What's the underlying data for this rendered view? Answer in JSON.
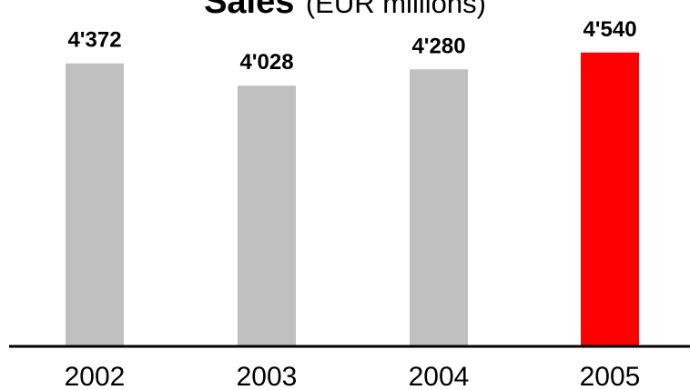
{
  "chart_data": {
    "type": "bar",
    "title": "Sales",
    "subtitle": "(EUR millions)",
    "categories": [
      "2002",
      "2003",
      "2004",
      "2005"
    ],
    "values": [
      4372,
      4028,
      4280,
      4540
    ],
    "value_labels": [
      "4'372",
      "4'028",
      "4'280",
      "4'540"
    ],
    "bar_colors": [
      "#c0c0c0",
      "#c0c0c0",
      "#c0c0c0",
      "#ff0000"
    ],
    "xlabel": "",
    "ylabel": "",
    "ylim": [
      0,
      4800
    ],
    "grid": false,
    "legend": "none"
  }
}
